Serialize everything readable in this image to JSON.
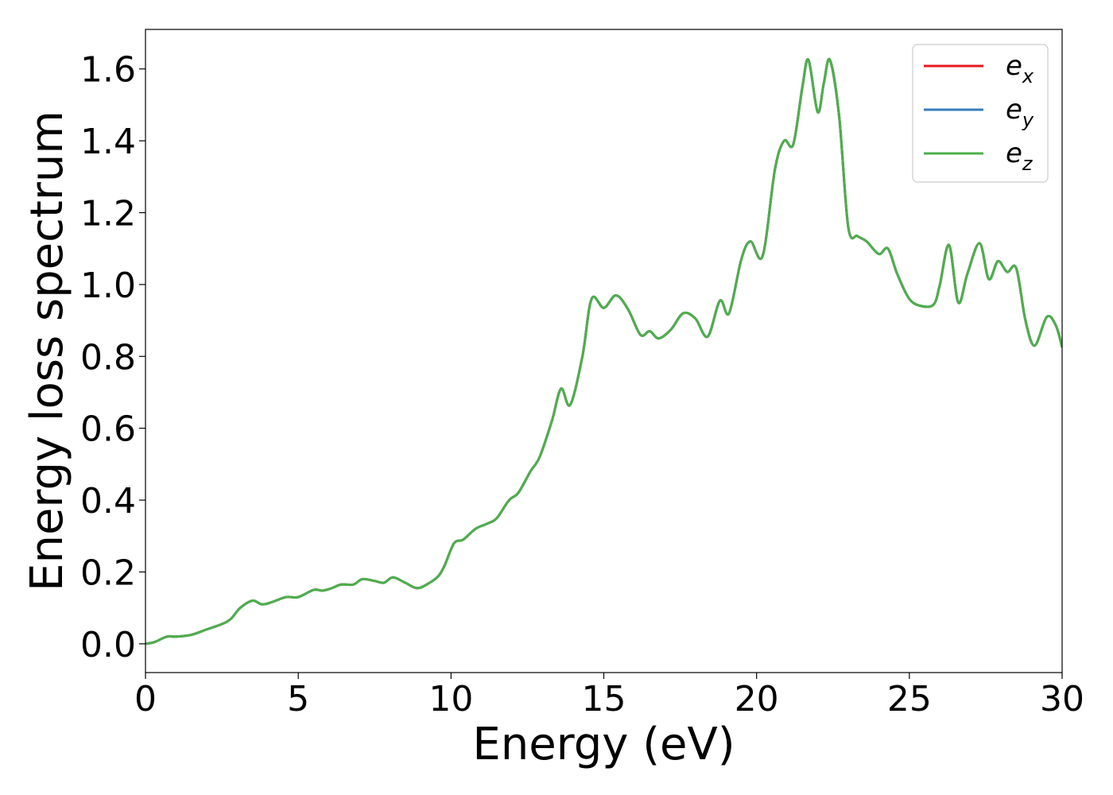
{
  "chart_data": {
    "type": "line",
    "title": "",
    "xlabel": "Energy (eV)",
    "ylabel": "Energy loss spectrum",
    "xlim": [
      0,
      30
    ],
    "ylim": [
      -0.08,
      1.71
    ],
    "xticks": [
      "0",
      "5",
      "10",
      "15",
      "20",
      "25",
      "30"
    ],
    "yticks": [
      "0.0",
      "0.2",
      "0.4",
      "0.6",
      "0.8",
      "1.0",
      "1.2",
      "1.4",
      "1.6"
    ],
    "grid": false,
    "legend_position": "top-right",
    "x": [
      0,
      0.3,
      0.7,
      1.0,
      1.5,
      2.0,
      2.5,
      2.8,
      3.1,
      3.5,
      3.8,
      4.1,
      4.6,
      5.0,
      5.5,
      5.8,
      6.1,
      6.4,
      6.8,
      7.1,
      7.5,
      7.8,
      8.1,
      8.5,
      8.9,
      9.3,
      9.6,
      9.8,
      10.1,
      10.4,
      10.8,
      11.2,
      11.5,
      11.9,
      12.2,
      12.6,
      12.9,
      13.3,
      13.6,
      13.9,
      14.3,
      14.6,
      15.0,
      15.4,
      15.8,
      16.2,
      16.5,
      16.8,
      17.2,
      17.6,
      18.0,
      18.4,
      18.8,
      19.1,
      19.5,
      19.8,
      20.2,
      20.6,
      20.9,
      21.2,
      21.5,
      21.7,
      22.0,
      22.2,
      22.4,
      22.7,
      23.0,
      23.3,
      23.6,
      24.0,
      24.3,
      24.6,
      25.0,
      25.4,
      25.8,
      26.0,
      26.3,
      26.6,
      26.9,
      27.3,
      27.6,
      27.9,
      28.2,
      28.5,
      28.8,
      29.1,
      29.5,
      29.8,
      30.0
    ],
    "series": [
      {
        "name": "e_x",
        "symbol": "e",
        "subscript": "x",
        "color": "#e41a1c",
        "values": [
          0.0,
          0.005,
          0.02,
          0.02,
          0.025,
          0.04,
          0.055,
          0.07,
          0.1,
          0.12,
          0.11,
          0.115,
          0.13,
          0.13,
          0.15,
          0.148,
          0.155,
          0.165,
          0.165,
          0.18,
          0.175,
          0.17,
          0.185,
          0.17,
          0.155,
          0.17,
          0.19,
          0.22,
          0.28,
          0.29,
          0.32,
          0.335,
          0.35,
          0.4,
          0.42,
          0.48,
          0.52,
          0.62,
          0.71,
          0.665,
          0.8,
          0.96,
          0.935,
          0.97,
          0.93,
          0.86,
          0.87,
          0.85,
          0.875,
          0.92,
          0.905,
          0.855,
          0.955,
          0.92,
          1.07,
          1.12,
          1.08,
          1.32,
          1.4,
          1.39,
          1.55,
          1.625,
          1.48,
          1.56,
          1.625,
          1.47,
          1.16,
          1.135,
          1.12,
          1.085,
          1.1,
          1.03,
          0.96,
          0.94,
          0.945,
          1.0,
          1.11,
          0.95,
          1.03,
          1.115,
          1.015,
          1.065,
          1.035,
          1.045,
          0.9,
          0.83,
          0.91,
          0.885,
          0.825
        ]
      },
      {
        "name": "e_y",
        "symbol": "e",
        "subscript": "y",
        "color": "#377eb8",
        "values": [
          0.0,
          0.005,
          0.02,
          0.02,
          0.025,
          0.04,
          0.055,
          0.07,
          0.1,
          0.12,
          0.11,
          0.115,
          0.13,
          0.13,
          0.15,
          0.148,
          0.155,
          0.165,
          0.165,
          0.18,
          0.175,
          0.17,
          0.185,
          0.17,
          0.155,
          0.17,
          0.19,
          0.22,
          0.28,
          0.29,
          0.32,
          0.335,
          0.35,
          0.4,
          0.42,
          0.48,
          0.52,
          0.62,
          0.71,
          0.665,
          0.8,
          0.96,
          0.935,
          0.97,
          0.93,
          0.86,
          0.87,
          0.85,
          0.875,
          0.92,
          0.905,
          0.855,
          0.955,
          0.92,
          1.07,
          1.12,
          1.08,
          1.32,
          1.4,
          1.39,
          1.55,
          1.625,
          1.48,
          1.56,
          1.625,
          1.47,
          1.16,
          1.135,
          1.12,
          1.085,
          1.1,
          1.03,
          0.96,
          0.94,
          0.945,
          1.0,
          1.11,
          0.95,
          1.03,
          1.115,
          1.015,
          1.065,
          1.035,
          1.045,
          0.9,
          0.83,
          0.91,
          0.885,
          0.825
        ]
      },
      {
        "name": "e_z",
        "symbol": "e",
        "subscript": "z",
        "color": "#4daf4a",
        "values": [
          0.0,
          0.005,
          0.02,
          0.02,
          0.025,
          0.04,
          0.055,
          0.07,
          0.1,
          0.12,
          0.11,
          0.115,
          0.13,
          0.13,
          0.15,
          0.148,
          0.155,
          0.165,
          0.165,
          0.18,
          0.175,
          0.17,
          0.185,
          0.17,
          0.155,
          0.17,
          0.19,
          0.22,
          0.28,
          0.29,
          0.32,
          0.335,
          0.35,
          0.4,
          0.42,
          0.48,
          0.52,
          0.62,
          0.71,
          0.665,
          0.8,
          0.96,
          0.935,
          0.97,
          0.93,
          0.86,
          0.87,
          0.85,
          0.875,
          0.92,
          0.905,
          0.855,
          0.955,
          0.92,
          1.07,
          1.12,
          1.08,
          1.32,
          1.4,
          1.39,
          1.55,
          1.625,
          1.48,
          1.56,
          1.625,
          1.47,
          1.16,
          1.135,
          1.12,
          1.085,
          1.1,
          1.03,
          0.96,
          0.94,
          0.945,
          1.0,
          1.11,
          0.95,
          1.03,
          1.115,
          1.015,
          1.065,
          1.035,
          1.045,
          0.9,
          0.83,
          0.91,
          0.885,
          0.825
        ]
      }
    ]
  }
}
